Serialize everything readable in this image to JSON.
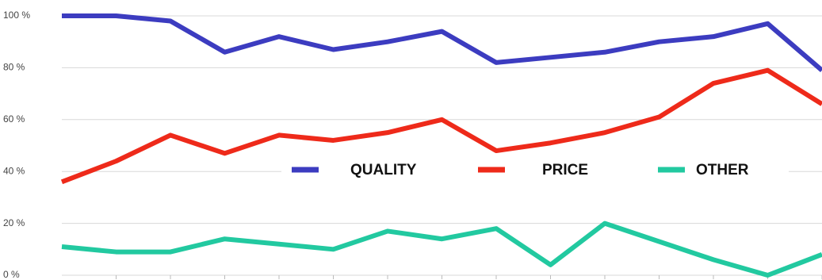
{
  "chart_data": {
    "type": "line",
    "categories": [
      null,
      null,
      null,
      null,
      null,
      null,
      null,
      null,
      null,
      null,
      null,
      null,
      null,
      null,
      null
    ],
    "series": [
      {
        "name": "QUALITY",
        "color": "#3c3cc0",
        "values": [
          100,
          100,
          98,
          86,
          92,
          87,
          90,
          94,
          82,
          84,
          86,
          90,
          92,
          97,
          79
        ]
      },
      {
        "name": "PRICE",
        "color": "#ee2a1a",
        "values": [
          36,
          44,
          54,
          47,
          54,
          52,
          55,
          60,
          48,
          51,
          55,
          61,
          74,
          79,
          66
        ]
      },
      {
        "name": "OTHER",
        "color": "#22c9a0",
        "values": [
          11,
          9,
          9,
          14,
          12,
          10,
          17,
          14,
          18,
          4,
          20,
          13,
          6,
          0,
          8
        ]
      }
    ],
    "ylim": [
      0,
      100
    ],
    "yticks": [
      {
        "value": 0,
        "label": "0 %"
      },
      {
        "value": 20,
        "label": "20 %"
      },
      {
        "value": 40,
        "label": "40 %"
      },
      {
        "value": 60,
        "label": "60 %"
      },
      {
        "value": 80,
        "label": "80 %"
      },
      {
        "value": 100,
        "label": "100 %"
      }
    ],
    "grid": true,
    "legend": "center"
  }
}
